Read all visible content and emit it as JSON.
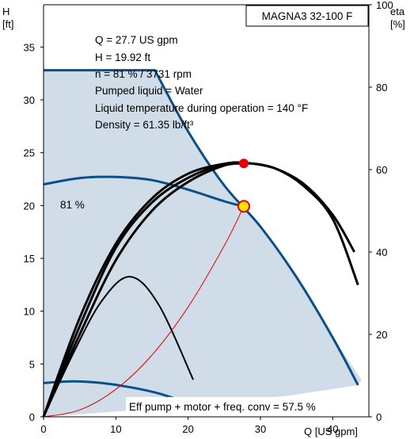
{
  "title": "MAGNA3 32-100 F",
  "info_lines": [
    "Q = 27.7 US gpm",
    "H = 19.92 ft",
    "n = 81 % / 3731 rpm",
    "Pumped liquid = Water",
    "Liquid temperature during operation = 140 °F",
    "Density = 61.35 lb/ft³"
  ],
  "footer_note": "Eff pump + motor + freq. conv = 57.5 %",
  "curve_label": "81 %",
  "colors": {
    "envelope_fill": "#d0dce8",
    "curve_blue": "#0b4f8a",
    "eff_black": "#000000",
    "system_red": "#e60000",
    "duty_point_fill": "#ffe600",
    "duty_point_stroke": "#e60000"
  },
  "chart_data": {
    "type": "line",
    "title": "MAGNA3 32-100 F",
    "x_axis": {
      "label": "Q [US gpm]",
      "range": [
        0,
        45
      ],
      "ticks": [
        0,
        10,
        20,
        30,
        40
      ]
    },
    "y_axis_left": {
      "name": "H",
      "unit": "[ft]",
      "range": [
        0,
        39
      ],
      "ticks": [
        0,
        5,
        10,
        15,
        20,
        25,
        30,
        35
      ]
    },
    "y_axis_right": {
      "name": "eta",
      "unit": "[%]",
      "range": [
        0,
        100
      ],
      "ticks": [
        0,
        20,
        40,
        60,
        80,
        100
      ]
    },
    "grid": false,
    "envelope": [
      [
        0,
        0
      ],
      [
        0,
        32.8
      ],
      [
        15.4,
        32.8
      ],
      [
        20,
        27
      ],
      [
        25,
        21.9
      ],
      [
        30,
        18
      ],
      [
        35,
        13.2
      ],
      [
        40,
        7.5
      ],
      [
        44,
        3.5
      ],
      [
        43.5,
        3
      ],
      [
        34,
        2
      ],
      [
        20,
        1
      ],
      [
        0,
        0
      ]
    ],
    "series": [
      {
        "role": "max-curve",
        "axis": "left",
        "x": [
          0,
          15.4,
          20,
          25,
          30,
          35,
          40,
          43.5
        ],
        "y": [
          32.8,
          32.8,
          27,
          21.9,
          18,
          13.2,
          7.5,
          3
        ]
      },
      {
        "role": "head-81",
        "axis": "left",
        "x": [
          0,
          5,
          10,
          15,
          20,
          25,
          27.7
        ],
        "y": [
          22,
          22.6,
          22.7,
          22.4,
          21.5,
          20.4,
          19.9
        ]
      },
      {
        "role": "min-curve",
        "axis": "left",
        "x": [
          0,
          4,
          8,
          12,
          16,
          20
        ],
        "y": [
          3.2,
          3.35,
          3.2,
          2.8,
          2.2,
          1.3
        ]
      },
      {
        "role": "eff-motor",
        "axis": "right",
        "x": [
          0,
          5,
          10,
          15,
          20,
          25,
          28,
          32,
          36,
          40,
          43
        ],
        "y": [
          0,
          22,
          41,
          52,
          58,
          61.3,
          61.6,
          60.3,
          56.5,
          49,
          40
        ]
      },
      {
        "role": "eff-system",
        "axis": "right",
        "x": [
          0,
          5,
          10,
          15,
          20,
          25,
          28,
          32,
          36,
          40,
          43.5
        ],
        "y": [
          0,
          24,
          42,
          53,
          59,
          61.4,
          61.6,
          60.3,
          56,
          48,
          32
        ]
      },
      {
        "role": "eff-total",
        "axis": "right",
        "x": [
          0,
          5,
          10,
          15,
          20,
          25,
          28
        ],
        "y": [
          0,
          20,
          38,
          50,
          57,
          61,
          61.5
        ]
      },
      {
        "role": "eff-small",
        "axis": "right",
        "x": [
          0,
          4,
          8,
          12,
          16,
          20.7
        ],
        "y": [
          0,
          15,
          28,
          34,
          27,
          9
        ]
      },
      {
        "role": "system-curve",
        "axis": "left",
        "x": [
          0,
          5,
          10,
          15,
          20,
          25,
          27.7
        ],
        "y": [
          0,
          0.65,
          2.6,
          5.85,
          10.4,
          16.2,
          19.92
        ]
      }
    ],
    "duty_point": {
      "x": 27.7,
      "y": 19.92
    },
    "eff_point": {
      "x": 27.7,
      "y": 61.5
    }
  }
}
